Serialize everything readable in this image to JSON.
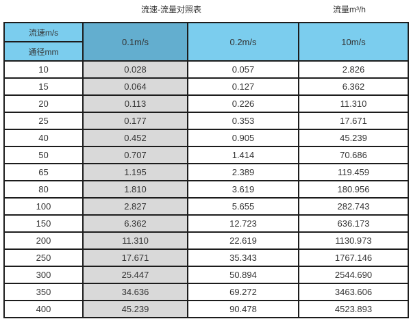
{
  "page": {
    "title_left": "流速-流量对照表",
    "title_right": "流量m³/h"
  },
  "table": {
    "corner": {
      "top": "流速m/s",
      "bottom": "通径mm"
    },
    "velocity_columns": [
      "0.1m/s",
      "0.2m/s",
      "10m/s"
    ],
    "rows": [
      {
        "diameter": "10",
        "values": [
          "0.028",
          "0.057",
          "2.826"
        ]
      },
      {
        "diameter": "15",
        "values": [
          "0.064",
          "0.127",
          "6.362"
        ]
      },
      {
        "diameter": "20",
        "values": [
          "0.113",
          "0.226",
          "11.310"
        ]
      },
      {
        "diameter": "25",
        "values": [
          "0.177",
          "0.353",
          "17.671"
        ]
      },
      {
        "diameter": "40",
        "values": [
          "0.452",
          "0.905",
          "45.239"
        ]
      },
      {
        "diameter": "50",
        "values": [
          "0.707",
          "1.414",
          "70.686"
        ]
      },
      {
        "diameter": "65",
        "values": [
          "1.195",
          "2.389",
          "119.459"
        ]
      },
      {
        "diameter": "80",
        "values": [
          "1.810",
          "3.619",
          "180.956"
        ]
      },
      {
        "diameter": "100",
        "values": [
          "2.827",
          "5.655",
          "282.743"
        ]
      },
      {
        "diameter": "150",
        "values": [
          "6.362",
          "12.723",
          "636.173"
        ]
      },
      {
        "diameter": "200",
        "values": [
          "11.310",
          "22.619",
          "1130.973"
        ]
      },
      {
        "diameter": "250",
        "values": [
          "17.671",
          "35.343",
          "1767.146"
        ]
      },
      {
        "diameter": "300",
        "values": [
          "25.447",
          "50.894",
          "2544.690"
        ]
      },
      {
        "diameter": "350",
        "values": [
          "34.636",
          "69.272",
          "3463.606"
        ]
      },
      {
        "diameter": "400",
        "values": [
          "45.239",
          "90.478",
          "4523.893"
        ]
      }
    ]
  },
  "colors": {
    "header_light_blue": "#7bcdee",
    "header_dark_blue": "#63aecf",
    "highlight_column_gray": "#d9d9d9",
    "border": "#1c1c1c",
    "text": "#333333"
  },
  "chart_data": {
    "type": "table",
    "title": "流速-流量对照表",
    "unit_label": "流量m³/h",
    "columns": [
      "通径mm",
      "0.1m/s",
      "0.2m/s",
      "10m/s"
    ],
    "rows": [
      [
        10,
        0.028,
        0.057,
        2.826
      ],
      [
        15,
        0.064,
        0.127,
        6.362
      ],
      [
        20,
        0.113,
        0.226,
        11.31
      ],
      [
        25,
        0.177,
        0.353,
        17.671
      ],
      [
        40,
        0.452,
        0.905,
        45.239
      ],
      [
        50,
        0.707,
        1.414,
        70.686
      ],
      [
        65,
        1.195,
        2.389,
        119.459
      ],
      [
        80,
        1.81,
        3.619,
        180.956
      ],
      [
        100,
        2.827,
        5.655,
        282.743
      ],
      [
        150,
        6.362,
        12.723,
        636.173
      ],
      [
        200,
        11.31,
        22.619,
        1130.973
      ],
      [
        250,
        17.671,
        35.343,
        1767.146
      ],
      [
        300,
        25.447,
        50.894,
        2544.69
      ],
      [
        350,
        34.636,
        69.272,
        3463.606
      ],
      [
        400,
        45.239,
        90.478,
        4523.893
      ]
    ]
  }
}
